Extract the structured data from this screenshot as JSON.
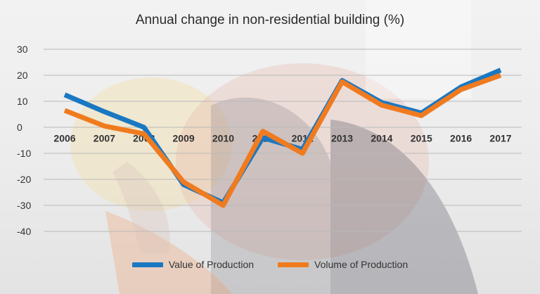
{
  "chart_data": {
    "type": "line",
    "title": "Annual change in non-residential building (%)",
    "categories": [
      "2006",
      "2007",
      "2008",
      "2009",
      "2010",
      "2011",
      "2012",
      "2013",
      "2014",
      "2015",
      "2016",
      "2017"
    ],
    "ylim": [
      -40,
      30
    ],
    "yticks": [
      30,
      20,
      10,
      0,
      -10,
      -20,
      -30,
      -40
    ],
    "grid": true,
    "legend_position": "bottom",
    "series": [
      {
        "name": "Value of Production",
        "color": "#1a78c2",
        "values": [
          12.5,
          6,
          0,
          -22,
          -29,
          -4,
          -8.5,
          18,
          9.5,
          5.5,
          15.5,
          22
        ]
      },
      {
        "name": "Volume of Production",
        "color": "#f07b1f",
        "values": [
          6.5,
          0.5,
          -2.5,
          -21,
          -30,
          -1.5,
          -10,
          17.5,
          8.5,
          4.5,
          14.5,
          20
        ]
      }
    ]
  }
}
